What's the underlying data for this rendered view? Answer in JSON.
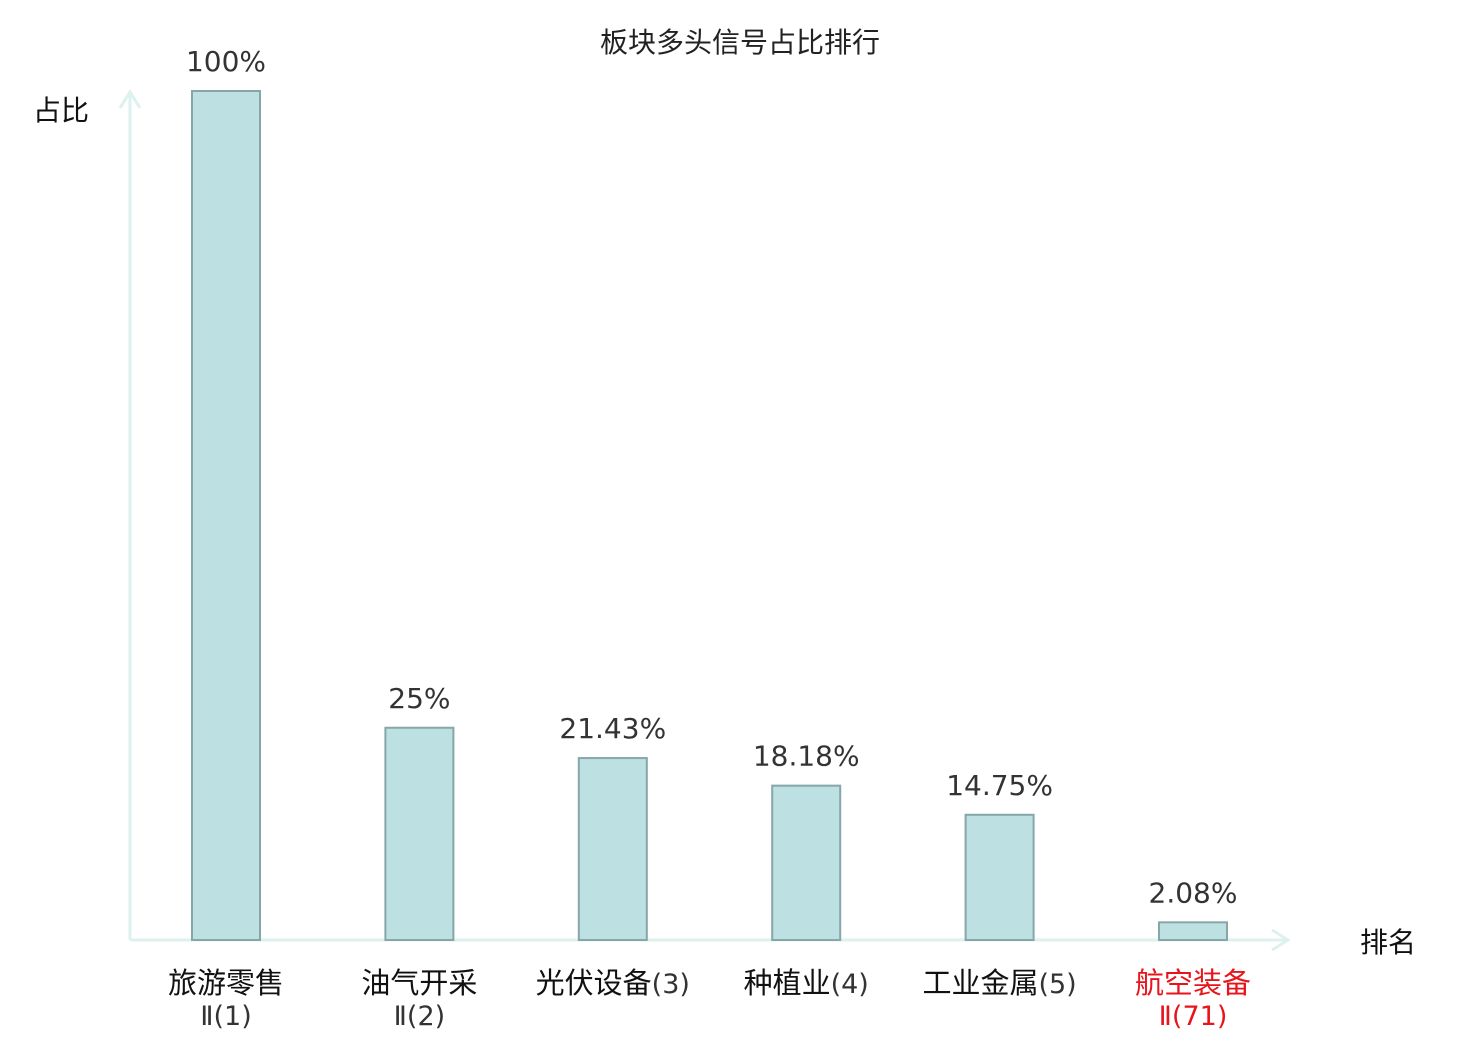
{
  "chart_data": {
    "type": "bar",
    "title": "板块多头信号占比排行",
    "xlabel": "排名",
    "ylabel": "占比",
    "ylim": [
      0,
      100
    ],
    "grid": false,
    "categories": [
      {
        "name": "旅游零售",
        "suffix": "Ⅱ(1)",
        "wrap": true,
        "highlight": false
      },
      {
        "name": "油气开采",
        "suffix": "Ⅱ(2)",
        "wrap": true,
        "highlight": false
      },
      {
        "name": "光伏设备",
        "suffix": "(3)",
        "wrap": false,
        "highlight": false
      },
      {
        "name": "种植业",
        "suffix": "(4)",
        "wrap": false,
        "highlight": false
      },
      {
        "name": "工业金属",
        "suffix": "(5)",
        "wrap": false,
        "highlight": false
      },
      {
        "name": "航空装备",
        "suffix": "Ⅱ(71)",
        "wrap": true,
        "highlight": true
      }
    ],
    "values": [
      100,
      25,
      21.43,
      18.18,
      14.75,
      2.08
    ],
    "value_labels": [
      "100%",
      "25%",
      "21.43%",
      "18.18%",
      "14.75%",
      "2.08%"
    ]
  },
  "colors": {
    "bar_fill": "#bde0e3",
    "bar_stroke": "#86a6a8",
    "axis": "#ddf1ee",
    "highlight": "#e8141b"
  }
}
